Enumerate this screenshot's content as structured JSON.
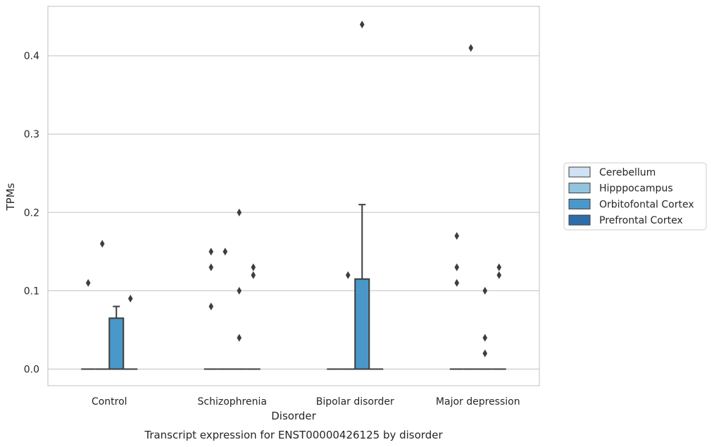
{
  "chart_data": {
    "type": "box",
    "caption": "Transcript expression for ENST00000426125 by disorder",
    "xlabel": "Disorder",
    "ylabel": "TPMs",
    "ylim": [
      -0.022,
      0.463
    ],
    "yticks": [
      0.0,
      0.1,
      0.2,
      0.3,
      0.4
    ],
    "ytick_labels": [
      "0.0",
      "0.1",
      "0.2",
      "0.3",
      "0.4"
    ],
    "grid": "horizontal",
    "legend_position": "right",
    "categories": [
      "Control",
      "Schizophrenia",
      "Bipolar disorder",
      "Major depression"
    ],
    "series": [
      {
        "name": "Cerebellum",
        "color": "#cfe1f2",
        "boxes": [
          {
            "q1": 0,
            "median": 0,
            "q3": 0,
            "whisker_low": 0,
            "whisker_high": 0,
            "outliers": [
              0.11
            ]
          },
          {
            "q1": 0,
            "median": 0,
            "q3": 0,
            "whisker_low": 0,
            "whisker_high": 0,
            "outliers": [
              0.08,
              0.13,
              0.15
            ]
          },
          {
            "q1": 0,
            "median": 0,
            "q3": 0,
            "whisker_low": 0,
            "whisker_high": 0,
            "outliers": []
          },
          {
            "q1": 0,
            "median": 0,
            "q3": 0,
            "whisker_low": 0,
            "whisker_high": 0,
            "outliers": [
              0.11,
              0.13,
              0.17
            ]
          }
        ]
      },
      {
        "name": "Hipppocampus",
        "color": "#93c4de",
        "boxes": [
          {
            "q1": 0,
            "median": 0,
            "q3": 0,
            "whisker_low": 0,
            "whisker_high": 0,
            "outliers": [
              0.16
            ]
          },
          {
            "q1": 0,
            "median": 0,
            "q3": 0,
            "whisker_low": 0,
            "whisker_high": 0,
            "outliers": [
              0.15
            ]
          },
          {
            "q1": 0,
            "median": 0,
            "q3": 0,
            "whisker_low": 0,
            "whisker_high": 0,
            "outliers": [
              0.12
            ]
          },
          {
            "q1": 0,
            "median": 0,
            "q3": 0,
            "whisker_low": 0,
            "whisker_high": 0,
            "outliers": [
              0.41
            ]
          }
        ]
      },
      {
        "name": "Orbitofontal Cortex",
        "color": "#4a98c9",
        "boxes": [
          {
            "q1": 0,
            "median": 0,
            "q3": 0.065,
            "whisker_low": 0,
            "whisker_high": 0.08,
            "outliers": []
          },
          {
            "q1": 0,
            "median": 0,
            "q3": 0,
            "whisker_low": 0,
            "whisker_high": 0,
            "outliers": [
              0.04,
              0.1,
              0.2
            ]
          },
          {
            "q1": 0,
            "median": 0,
            "q3": 0.115,
            "whisker_low": 0,
            "whisker_high": 0.21,
            "outliers": [
              0.44
            ]
          },
          {
            "q1": 0,
            "median": 0,
            "q3": 0,
            "whisker_low": 0,
            "whisker_high": 0,
            "outliers": [
              0.02,
              0.04,
              0.1
            ]
          }
        ]
      },
      {
        "name": "Prefrontal Cortex",
        "color": "#2d6ea8",
        "boxes": [
          {
            "q1": 0,
            "median": 0,
            "q3": 0,
            "whisker_low": 0,
            "whisker_high": 0,
            "outliers": [
              0.09
            ]
          },
          {
            "q1": 0,
            "median": 0,
            "q3": 0,
            "whisker_low": 0,
            "whisker_high": 0,
            "outliers": [
              0.12,
              0.13
            ]
          },
          {
            "q1": 0,
            "median": 0,
            "q3": 0,
            "whisker_low": 0,
            "whisker_high": 0,
            "outliers": []
          },
          {
            "q1": 0,
            "median": 0,
            "q3": 0,
            "whisker_low": 0,
            "whisker_high": 0,
            "outliers": [
              0.12,
              0.13
            ]
          }
        ]
      }
    ]
  }
}
